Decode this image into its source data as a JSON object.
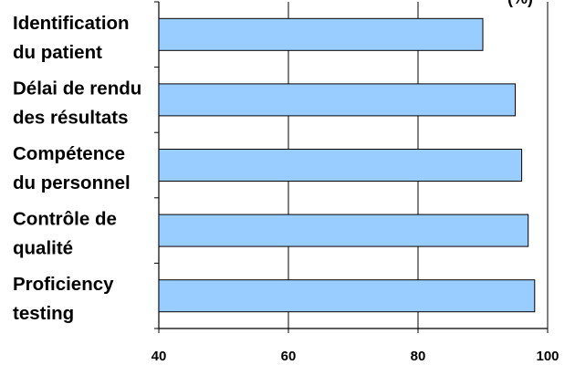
{
  "chart_data": {
    "type": "bar",
    "orientation": "horizontal",
    "title_visible": "(%)",
    "categories": [
      [
        "Identification",
        "du patient"
      ],
      [
        "Délai de rendu",
        "des résultats"
      ],
      [
        "Compétence",
        "du personnel"
      ],
      [
        "Contrôle de",
        "qualité"
      ],
      [
        "Proficiency",
        "testing"
      ]
    ],
    "values": [
      90,
      95,
      96,
      97,
      98
    ],
    "xlim": [
      40,
      100
    ],
    "xticks": [
      40,
      60,
      80,
      100
    ],
    "grid": true,
    "bar_color": "#99CCFF",
    "bar_edge_color": "#000000"
  }
}
